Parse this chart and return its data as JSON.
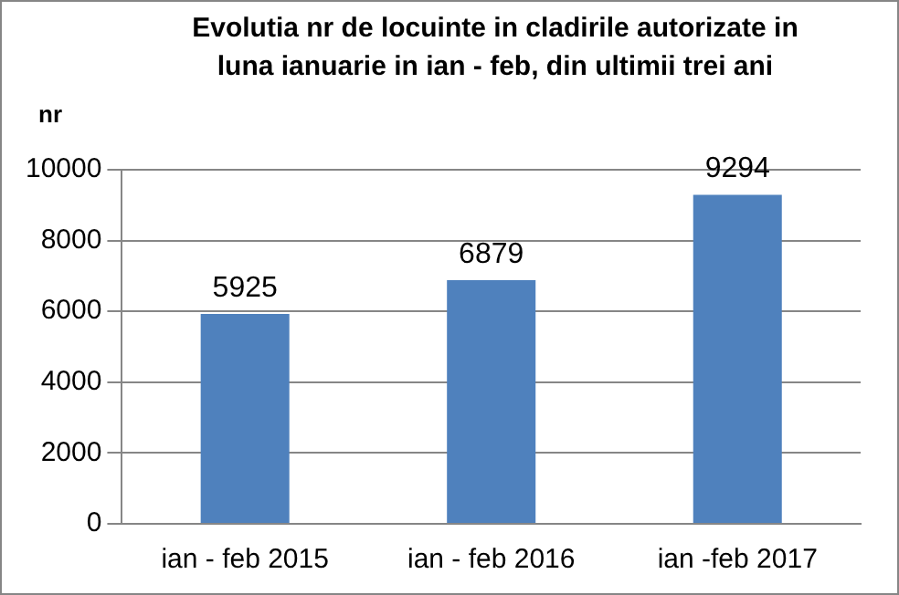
{
  "chart_data": {
    "type": "bar",
    "title": "Evolutia nr de locuinte in cladirile autorizate in luna ianuarie  in ian - feb, din ultimii trei ani",
    "ylabel": "nr",
    "categories": [
      "ian - feb 2015",
      "ian - feb 2016",
      "ian -feb 2017"
    ],
    "values": [
      5925,
      6879,
      9294
    ],
    "color": "#4f81bd",
    "ylim": [
      0,
      10000
    ],
    "yticks": [
      0,
      2000,
      4000,
      6000,
      8000,
      10000
    ],
    "grid": "y",
    "data_labels": true
  }
}
